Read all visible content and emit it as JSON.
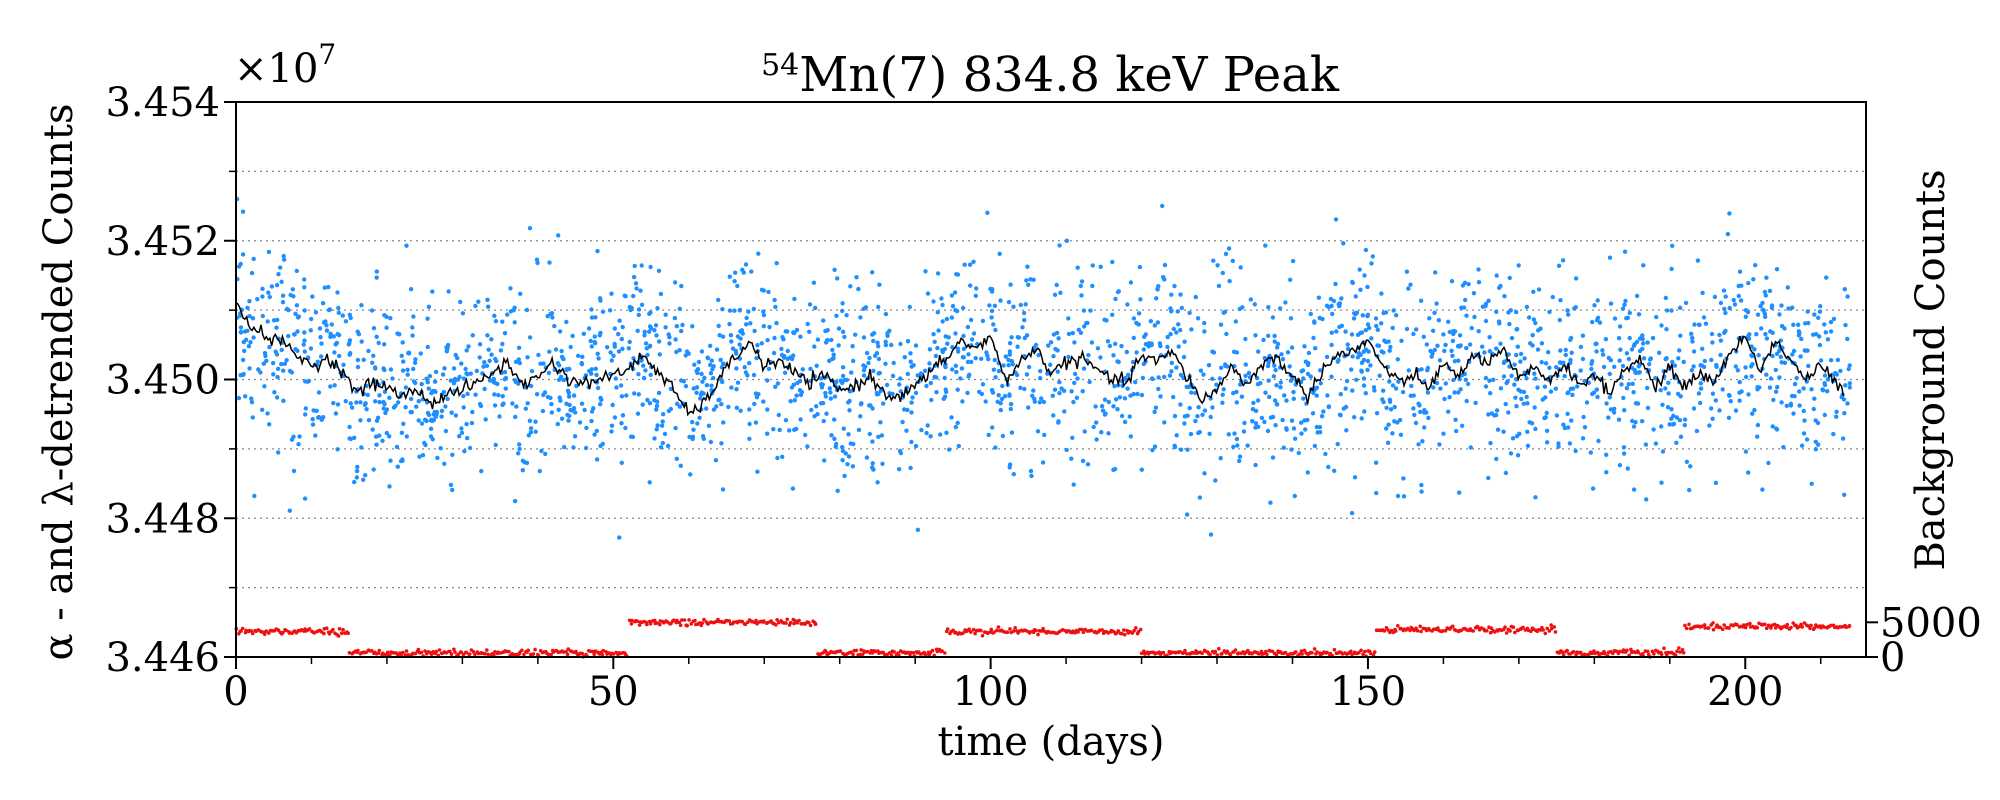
{
  "chart_data": {
    "type": "scatter",
    "title": "Mn(7) 834.8 keV Peak",
    "title_superscript": "54",
    "xlabel": "time (days)",
    "ylabel_left": "α - and λ-detrended Counts",
    "ylabel_right": "Background Counts",
    "y_exponent_label": "×10",
    "y_exponent_power": "7",
    "xlim": [
      0,
      216
    ],
    "ylim_left": [
      34460000,
      34540000
    ],
    "ylim_right": [
      0,
      80000
    ],
    "x_ticks": [
      0,
      50,
      100,
      150,
      200
    ],
    "x_tick_labels": [
      "0",
      "50",
      "100",
      "150",
      "200"
    ],
    "y_ticks_left": [
      34460000,
      34480000,
      34500000,
      34520000,
      34540000
    ],
    "y_tick_labels_left": [
      "3.446",
      "3.448",
      "3.450",
      "3.452",
      "3.454"
    ],
    "y_ticks_right": [
      0,
      5000
    ],
    "y_tick_labels_right": [
      "0",
      "5000"
    ],
    "gridlines_y_left": [
      34470000,
      34480000,
      34490000,
      34500000,
      34510000,
      34520000,
      34530000
    ],
    "grid": "horizontal dotted",
    "series": [
      {
        "name": "measurements",
        "style": "scatter",
        "color": "#1f8fff",
        "y_axis": "left",
        "x_range": [
          0,
          214
        ],
        "approx_mean": 34500000,
        "approx_spread_1sigma": 7000,
        "y_min": 34477000,
        "y_max": 34526000
      },
      {
        "name": "running mean",
        "style": "line",
        "color": "#000000",
        "y_axis": "left",
        "x": [
          0,
          2,
          4,
          6,
          8,
          10,
          12,
          14,
          16,
          18,
          20,
          22,
          24,
          26,
          28,
          30,
          32,
          34,
          36,
          38,
          40,
          42,
          44,
          46,
          48,
          50,
          52,
          54,
          56,
          58,
          60,
          62,
          64,
          66,
          68,
          70,
          72,
          74,
          76,
          78,
          80,
          82,
          84,
          86,
          88,
          90,
          92,
          94,
          96,
          98,
          100,
          102,
          104,
          106,
          108,
          110,
          112,
          114,
          116,
          118,
          120,
          122,
          124,
          126,
          128,
          130,
          132,
          134,
          136,
          138,
          140,
          142,
          144,
          146,
          148,
          150,
          152,
          154,
          156,
          158,
          160,
          162,
          164,
          166,
          168,
          170,
          172,
          174,
          176,
          178,
          180,
          182,
          184,
          186,
          188,
          190,
          192,
          194,
          196,
          198,
          200,
          202,
          204,
          206,
          208,
          210,
          212,
          213
        ],
        "y": [
          34510500,
          34508000,
          34506000,
          34505500,
          34503500,
          34502000,
          34503000,
          34501500,
          34498000,
          34499500,
          34499000,
          34497500,
          34498500,
          34496500,
          34498000,
          34498500,
          34499500,
          34501000,
          34502500,
          34499000,
          34500500,
          34502500,
          34500000,
          34499500,
          34500000,
          34500500,
          34501500,
          34503500,
          34501000,
          34498500,
          34495000,
          34496500,
          34500000,
          34503000,
          34505500,
          34502000,
          34502500,
          34501000,
          34499500,
          34500500,
          34498500,
          34499000,
          34500500,
          34498000,
          34497500,
          34499000,
          34501000,
          34503000,
          34505500,
          34504500,
          34506000,
          34500000,
          34502500,
          34504500,
          34501000,
          34502500,
          34503000,
          34501500,
          34500000,
          34499500,
          34503500,
          34502500,
          34504000,
          34500500,
          34497000,
          34498500,
          34502000,
          34499000,
          34502500,
          34503000,
          34500500,
          34497500,
          34501500,
          34503500,
          34504000,
          34505500,
          34502000,
          34499500,
          34500500,
          34499000,
          34502000,
          34500500,
          34503500,
          34502500,
          34504000,
          34500000,
          34501500,
          34500000,
          34502000,
          34499500,
          34500500,
          34498000,
          34501500,
          34503000,
          34499000,
          34501500,
          34499000,
          34501000,
          34499500,
          34504000,
          34506000,
          34501500,
          34505500,
          34503000,
          34500000,
          34502000,
          34499500,
          34498000
        ]
      },
      {
        "name": "background",
        "style": "scatter",
        "color": "#ee1111",
        "y_axis": "right",
        "segments": [
          {
            "x": [
              0,
              15
            ],
            "y": 3700
          },
          {
            "x": [
              15,
              52
            ],
            "y": 600
          },
          {
            "x": [
              52,
              77
            ],
            "y": 5000
          },
          {
            "x": [
              77,
              94
            ],
            "y": 600
          },
          {
            "x": [
              94,
              120
            ],
            "y": 3700
          },
          {
            "x": [
              120,
              151
            ],
            "y": 600
          },
          {
            "x": [
              151,
              175
            ],
            "y": 4000
          },
          {
            "x": [
              175,
              192
            ],
            "y": 600
          },
          {
            "x": [
              192,
              214
            ],
            "y": 4400
          }
        ]
      }
    ]
  }
}
